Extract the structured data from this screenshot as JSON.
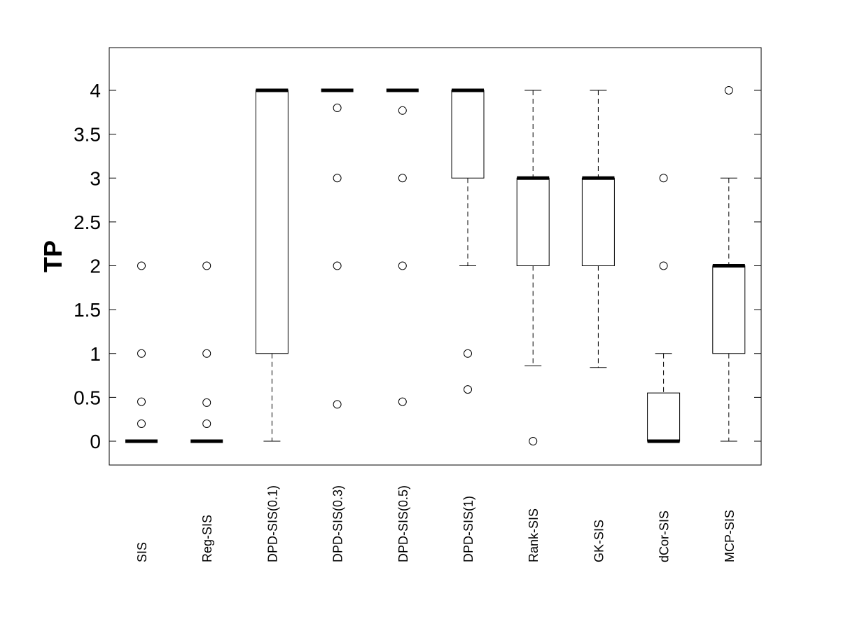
{
  "chart_data": {
    "type": "boxplot",
    "title": "",
    "xlabel": "",
    "ylabel": "TP",
    "ylim": [
      -0.27,
      4.48
    ],
    "yticks": [
      0,
      0.5,
      1,
      1.5,
      2,
      2.5,
      3,
      3.5,
      4
    ],
    "ytick_labels": [
      "0",
      "0.5",
      "1",
      "1.5",
      "2",
      "2.5",
      "3",
      "3.5",
      "4"
    ],
    "grid": false,
    "categories": [
      "SIS",
      "Reg-SIS",
      "DPD-SIS(0.1)",
      "DPD-SIS(0.3)",
      "DPD-SIS(0.5)",
      "DPD-SIS(1)",
      "Rank-SIS",
      "GK-SIS",
      "dCor-SIS",
      "MCP-SIS"
    ],
    "boxes": [
      {
        "q1": 0,
        "median": 0,
        "q3": 0,
        "whisker_low": 0,
        "whisker_high": 0,
        "outliers": [
          0.2,
          0.45,
          1,
          2
        ]
      },
      {
        "q1": 0,
        "median": 0,
        "q3": 0,
        "whisker_low": 0,
        "whisker_high": 0,
        "outliers": [
          0.2,
          0.44,
          1,
          2
        ]
      },
      {
        "q1": 1,
        "median": 4,
        "q3": 4,
        "whisker_low": 0,
        "whisker_high": 4,
        "outliers": []
      },
      {
        "q1": 4,
        "median": 4,
        "q3": 4,
        "whisker_low": 4,
        "whisker_high": 4,
        "outliers": [
          0.42,
          2,
          3,
          3.8
        ]
      },
      {
        "q1": 4,
        "median": 4,
        "q3": 4,
        "whisker_low": 4,
        "whisker_high": 4,
        "outliers": [
          0.45,
          2,
          3,
          3.77
        ]
      },
      {
        "q1": 3,
        "median": 4,
        "q3": 4,
        "whisker_low": 2,
        "whisker_high": 4,
        "outliers": [
          0.59,
          1
        ]
      },
      {
        "q1": 2,
        "median": 3,
        "q3": 3,
        "whisker_low": 0.86,
        "whisker_high": 4,
        "outliers": [
          0
        ]
      },
      {
        "q1": 2,
        "median": 3,
        "q3": 3,
        "whisker_low": 0.84,
        "whisker_high": 4,
        "outliers": []
      },
      {
        "q1": 0,
        "median": 0,
        "q3": 0.55,
        "whisker_low": 0,
        "whisker_high": 1,
        "outliers": [
          2,
          3
        ]
      },
      {
        "q1": 1,
        "median": 2,
        "q3": 2,
        "whisker_low": 0,
        "whisker_high": 3,
        "outliers": [
          4
        ]
      }
    ]
  }
}
